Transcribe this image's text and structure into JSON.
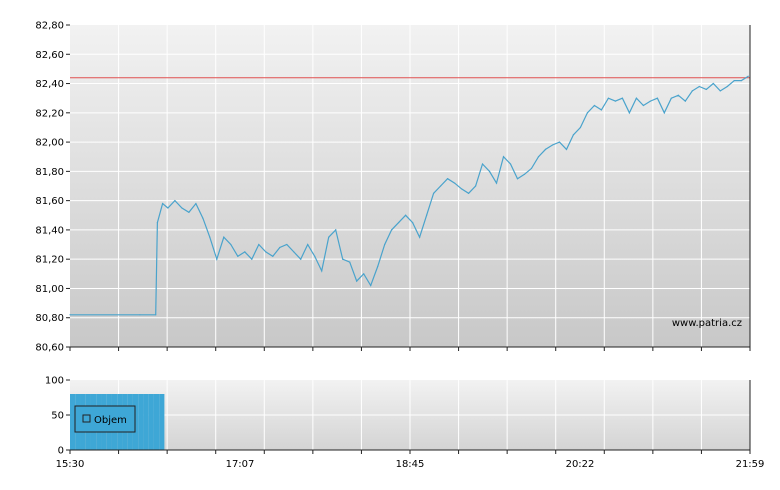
{
  "chart_data": [
    {
      "type": "line",
      "x_ticks": [
        "15:30",
        "17:07",
        "18:45",
        "20:22",
        "21:59"
      ],
      "y_ticks": [
        "80,60",
        "80,80",
        "81,00",
        "81,20",
        "81,40",
        "81,60",
        "81,80",
        "82,00",
        "82,20",
        "82,40",
        "82,60",
        "82,80"
      ],
      "ylim": [
        80.6,
        82.8
      ],
      "xlim_minutes": [
        930,
        1319
      ],
      "reference_line": 82.44,
      "grid": true,
      "watermark": "www.patria.cz",
      "series": [
        {
          "x": [
            "15:30",
            "16:10",
            "16:19",
            "16:20",
            "16:23",
            "16:26",
            "16:30",
            "16:34",
            "16:38",
            "16:42",
            "16:46",
            "16:50",
            "16:54",
            "16:58",
            "17:02",
            "17:06",
            "17:10",
            "17:14",
            "17:18",
            "17:22",
            "17:26",
            "17:30",
            "17:34",
            "17:38",
            "17:42",
            "17:46",
            "17:50",
            "17:54",
            "17:58",
            "18:02",
            "18:06",
            "18:10",
            "18:14",
            "18:18",
            "18:22",
            "18:26",
            "18:30",
            "18:34",
            "18:38",
            "18:42",
            "18:46",
            "18:50",
            "18:54",
            "18:58",
            "19:02",
            "19:06",
            "19:10",
            "19:14",
            "19:18",
            "19:22",
            "19:26",
            "19:30",
            "19:34",
            "19:38",
            "19:42",
            "19:46",
            "19:50",
            "19:54",
            "19:58",
            "20:02",
            "20:06",
            "20:10",
            "20:14",
            "20:18",
            "20:22",
            "20:26",
            "20:30",
            "20:34",
            "20:38",
            "20:42",
            "20:46",
            "20:50",
            "20:54",
            "20:58",
            "21:02",
            "21:06",
            "21:10",
            "21:14",
            "21:18",
            "21:22",
            "21:26",
            "21:30",
            "21:34",
            "21:38",
            "21:42",
            "21:46",
            "21:50",
            "21:54",
            "21:58"
          ],
          "values": [
            80.82,
            80.82,
            80.82,
            81.45,
            81.58,
            81.55,
            81.6,
            81.55,
            81.52,
            81.58,
            81.48,
            81.35,
            81.2,
            81.35,
            81.3,
            81.22,
            81.25,
            81.2,
            81.3,
            81.25,
            81.22,
            81.28,
            81.3,
            81.25,
            81.2,
            81.3,
            81.22,
            81.12,
            81.35,
            81.4,
            81.2,
            81.18,
            81.05,
            81.1,
            81.02,
            81.15,
            81.3,
            81.4,
            81.45,
            81.5,
            81.45,
            81.35,
            81.5,
            81.65,
            81.7,
            81.75,
            81.72,
            81.68,
            81.65,
            81.7,
            81.85,
            81.8,
            81.72,
            81.9,
            81.85,
            81.75,
            81.78,
            81.82,
            81.9,
            81.95,
            81.98,
            82.0,
            81.95,
            82.05,
            82.1,
            82.2,
            82.25,
            82.22,
            82.3,
            82.28,
            82.3,
            82.2,
            82.3,
            82.25,
            82.28,
            82.3,
            82.2,
            82.3,
            82.32,
            82.28,
            82.35,
            82.38,
            82.36,
            82.4,
            82.35,
            82.38,
            82.42,
            82.42,
            82.45
          ]
        }
      ]
    },
    {
      "type": "bar",
      "legend": "Objem",
      "y_ticks": [
        "0",
        "50",
        "100"
      ],
      "ylim": [
        0,
        100
      ],
      "x_ticks": [
        "15:30",
        "17:07",
        "18:45",
        "20:22",
        "21:59"
      ],
      "series": [
        {
          "name": "Objem",
          "x": [
            "15:30",
            "15:33",
            "15:36",
            "15:39",
            "15:42",
            "15:45",
            "15:48",
            "15:51",
            "15:54",
            "15:57",
            "16:00",
            "16:03",
            "16:06",
            "16:09",
            "16:12",
            "16:15",
            "16:18",
            "16:21"
          ],
          "values": [
            80,
            80,
            80,
            80,
            80,
            80,
            80,
            80,
            80,
            80,
            80,
            80,
            80,
            80,
            80,
            80,
            80,
            80
          ]
        }
      ]
    }
  ],
  "colors": {
    "line": "#4aa3cc",
    "reference": "#e05050",
    "bar": "#3ea7d6",
    "grid": "#ffffff",
    "bg_top": "#f2f2f2",
    "bg_bottom": "#c8c8c8",
    "axis": "#222222"
  }
}
